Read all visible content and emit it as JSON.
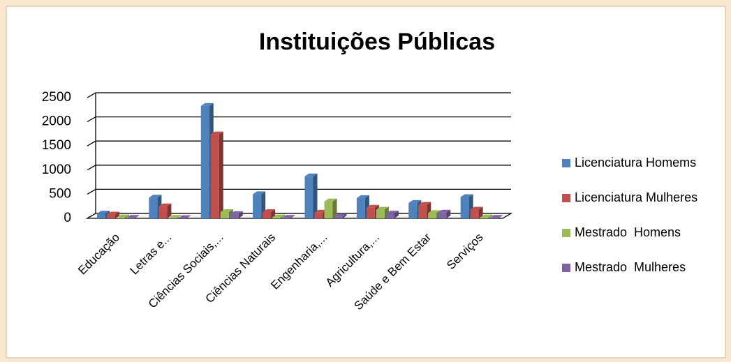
{
  "chart_data": {
    "type": "bar",
    "title": "Instituições Públicas",
    "categories": [
      "Educação",
      "Letras e...",
      "Ciências Sociais,...",
      "Ciências Naturais",
      "Engenharia,...",
      "Agricultura,...",
      "Saúde e Bem Estar",
      "Serviços"
    ],
    "series": [
      {
        "name": "Licenciatura Homems",
        "color": "#4f81bd",
        "values": [
          100,
          430,
          2330,
          500,
          870,
          420,
          320,
          440
        ]
      },
      {
        "name": "Licenciatura Mulheres",
        "color": "#c0504d",
        "values": [
          80,
          250,
          1740,
          130,
          120,
          220,
          280,
          180
        ]
      },
      {
        "name": "Mestrado  Homens",
        "color": "#9bbb59",
        "values": [
          20,
          10,
          130,
          20,
          350,
          180,
          110,
          20
        ]
      },
      {
        "name": "Mestrado  Mulheres",
        "color": "#8064a2",
        "values": [
          10,
          5,
          90,
          10,
          40,
          100,
          120,
          10
        ]
      }
    ],
    "ylim": [
      0,
      2500
    ],
    "yticks": [
      0,
      500,
      1000,
      1500,
      2000,
      2500
    ],
    "grid": true,
    "legend": "right"
  }
}
